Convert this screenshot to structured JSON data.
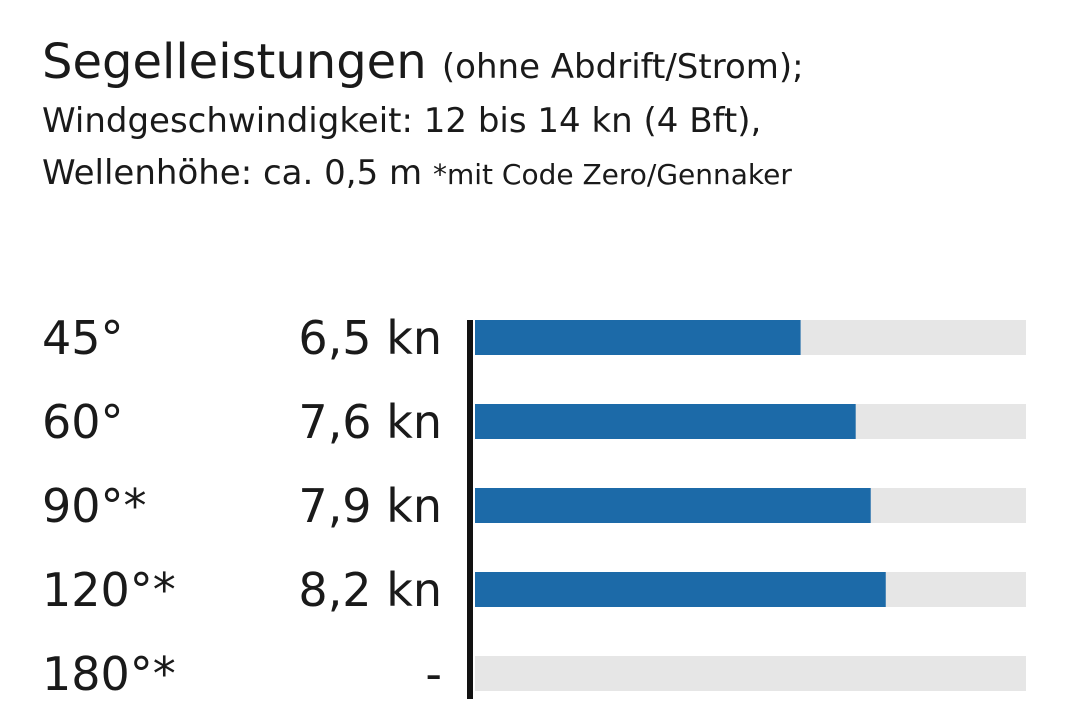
{
  "header": {
    "title": "Segelleistungen",
    "title_suffix": "(ohne Abdrift/Strom);",
    "line2": "Windgeschwindigkeit: 12 bis 14 kn (4 Bft),",
    "line3": "Wellenhöhe: ca. 0,5 m",
    "footnote": "*mit Code Zero/Gennaker"
  },
  "colors": {
    "bar": "#1c6aa8",
    "track": "#e6e6e6",
    "axis": "#111111",
    "text": "#1a1a1a"
  },
  "chart_data": {
    "type": "bar",
    "orientation": "horizontal",
    "categories": [
      "45°",
      "60°",
      "90°*",
      "120°*",
      "180°*"
    ],
    "value_labels": [
      "6,5 kn",
      "7,6 kn",
      "7,9 kn",
      "8,2 kn",
      "-"
    ],
    "values": [
      6.5,
      7.6,
      7.9,
      8.2,
      null
    ],
    "xlim": [
      0,
      11
    ],
    "grid": false,
    "unit": "kn"
  }
}
